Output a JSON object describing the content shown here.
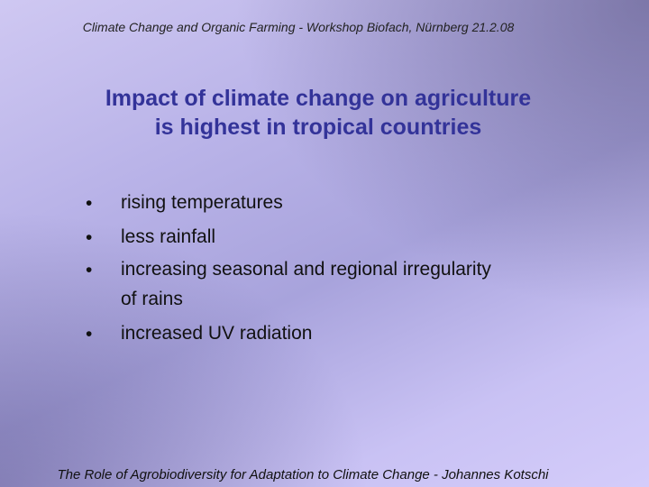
{
  "header": {
    "text": "Climate Change and Organic Farming - Workshop Biofach, Nürnberg 21.2.08"
  },
  "title": {
    "lines": [
      "Impact of climate change on agriculture",
      "is highest in tropical countries"
    ]
  },
  "bullets": [
    {
      "marker": "•",
      "lines": [
        "rising temperatures"
      ]
    },
    {
      "marker": "•",
      "lines": [
        "less rainfall"
      ]
    },
    {
      "marker": "•",
      "lines": [
        "increasing seasonal and regional  irregularity",
        "of rains"
      ]
    },
    {
      "marker": "•",
      "lines": [
        "increased UV radiation"
      ]
    }
  ],
  "footer": {
    "text": "The Role of Agrobiodiversity for Adaptation to Climate Change - Johannes Kotschi"
  }
}
